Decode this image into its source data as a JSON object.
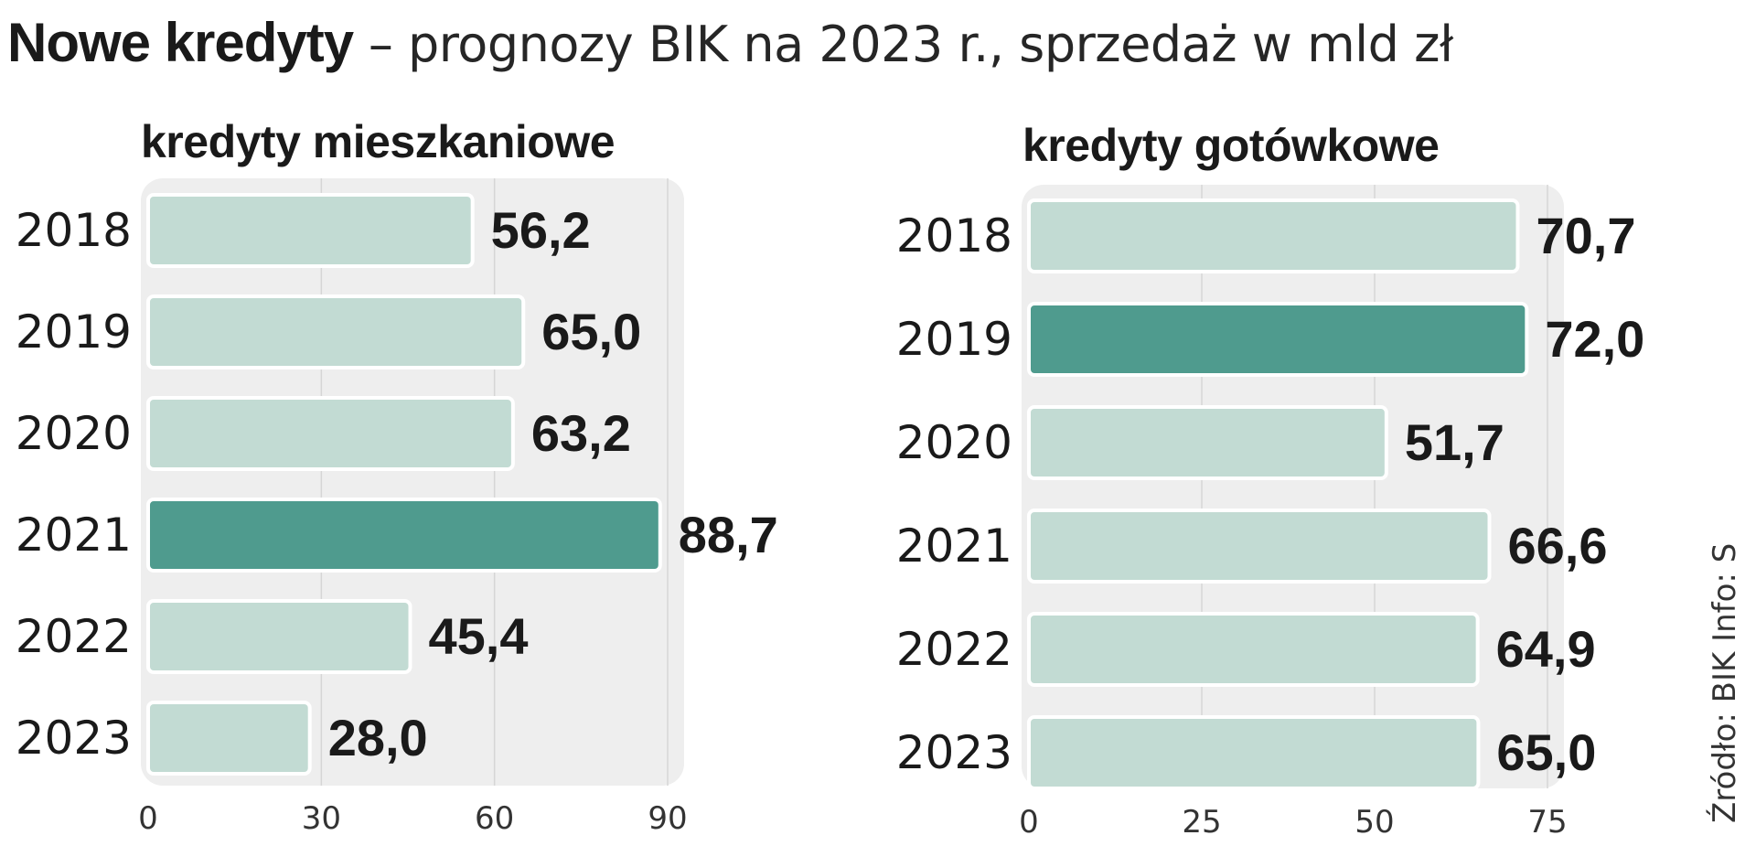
{
  "title": {
    "bold": "Nowe kredyty",
    "rest": " – prognozy BIK na 2023 r., sprzedaż w mld zł"
  },
  "source": "Źródło: BIK   Info: S",
  "colors": {
    "bar_light": "#c2dbd3",
    "bar_highlight": "#4f9b8e",
    "panel": "#eeeeee",
    "text": "#1a1a1a"
  },
  "chart_data": [
    {
      "type": "bar",
      "orientation": "horizontal",
      "subtitle": "kredyty mieszkaniowe",
      "categories": [
        "2018",
        "2019",
        "2020",
        "2021",
        "2022",
        "2023"
      ],
      "values": [
        56.2,
        65.0,
        63.2,
        88.7,
        45.4,
        28.0
      ],
      "value_labels": [
        "56,2",
        "65,0",
        "63,2",
        "88,7",
        "45,4",
        "28,0"
      ],
      "highlight_index": 3,
      "xlim": [
        0,
        90
      ],
      "xticks": [
        0,
        30,
        60,
        90
      ],
      "grid": true
    },
    {
      "type": "bar",
      "orientation": "horizontal",
      "subtitle": "kredyty gotówkowe",
      "categories": [
        "2018",
        "2019",
        "2020",
        "2021",
        "2022",
        "2023"
      ],
      "values": [
        70.7,
        72.0,
        51.7,
        66.6,
        64.9,
        65.0
      ],
      "value_labels": [
        "70,7",
        "72,0",
        "51,7",
        "66,6",
        "64,9",
        "65,0"
      ],
      "highlight_index": 1,
      "xlim": [
        0,
        75
      ],
      "xticks": [
        0,
        25,
        50,
        75
      ],
      "grid": true
    }
  ]
}
